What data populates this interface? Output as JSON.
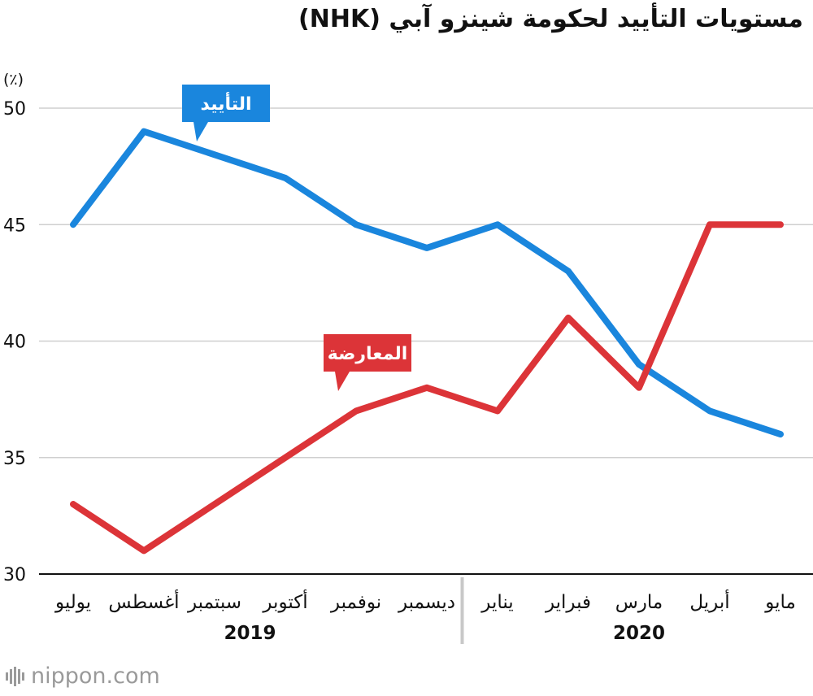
{
  "title": "مستويات التأييد لحكومة شينزو آبي (NHK)",
  "chart_data": {
    "type": "line",
    "title": "مستويات التأييد لحكومة شينزو آبي (NHK)",
    "ylabel": "(٪)",
    "ylim": [
      30,
      50
    ],
    "yticks": [
      30,
      35,
      40,
      45,
      50
    ],
    "grid": true,
    "categories": [
      "يوليو",
      "أغسطس",
      "سبتمبر",
      "أكتوبر",
      "نوفمبر",
      "ديسمبر",
      "يناير",
      "فبراير",
      "مارس",
      "أبريل",
      "مايو"
    ],
    "year_groups": [
      {
        "label": "2019",
        "start": 0,
        "end": 5
      },
      {
        "label": "2020",
        "start": 6,
        "end": 10
      }
    ],
    "series": [
      {
        "name": "التأييد",
        "color": "#1a86dd",
        "label_at": 2,
        "values": [
          45,
          49,
          48,
          47,
          45,
          44,
          45,
          43,
          39,
          37,
          36
        ]
      },
      {
        "name": "المعارضة",
        "color": "#dc3438",
        "label_at": 4,
        "values": [
          33,
          31,
          33,
          35,
          37,
          38,
          37,
          41,
          38,
          45,
          45
        ]
      }
    ]
  },
  "logo": {
    "text": "nippon.com",
    "icon": "nippon-logo-icon"
  }
}
